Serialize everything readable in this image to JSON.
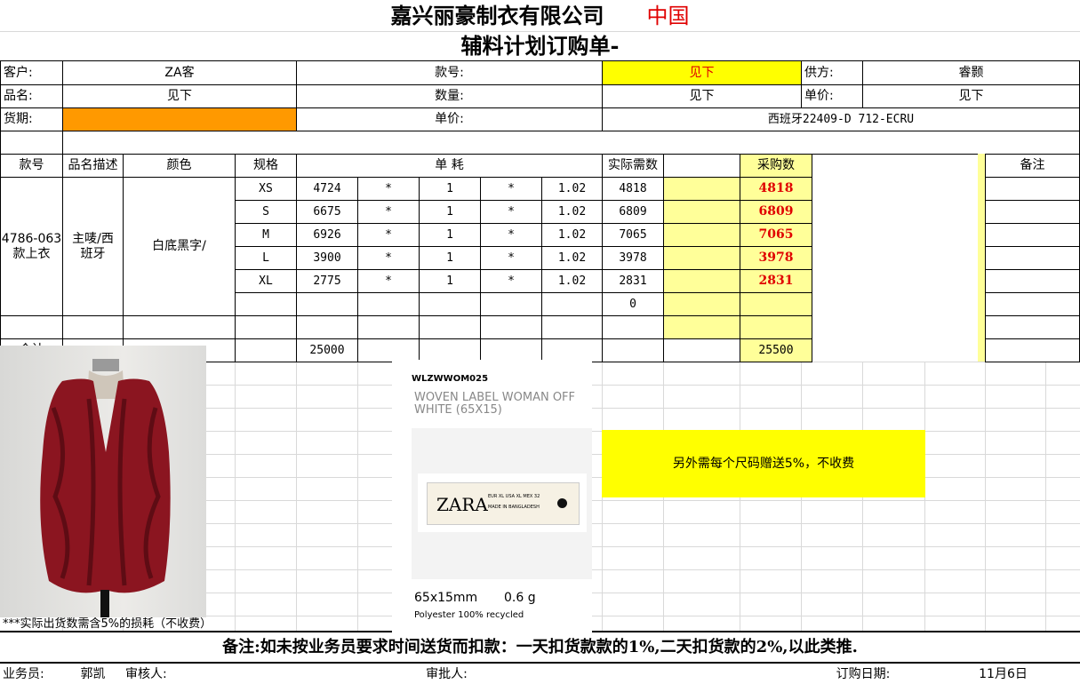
{
  "title": {
    "company": "嘉兴丽豪制衣有限公司",
    "country": "中国",
    "doc": "辅料计划订购单-"
  },
  "info": {
    "customer_label": "客户:",
    "customer": "ZA客",
    "style_label": "款号:",
    "style": "见下",
    "supplier_label": "供方:",
    "supplier": "睿颢",
    "name_label": "品名:",
    "name": "见下",
    "qty_label": "数量:",
    "qty": "见下",
    "price_label": "单价:",
    "price": "见下",
    "delivery_label": "货期:",
    "delivery": "",
    "price2_label": "单价:",
    "price2": "西班牙22409-D 712-ECRU"
  },
  "headers": {
    "style": "款号",
    "desc": "品名描述",
    "color": "颜色",
    "size": "规格",
    "usage": "单 耗",
    "actual": "实际需数",
    "purchase": "采购数",
    "remark": "备注"
  },
  "item": {
    "style": "4786-063\n款上衣",
    "desc": "主唛/西\n班牙",
    "color": "白底黑字/"
  },
  "rows": [
    {
      "size": "XS",
      "qty": "4724",
      "op1": "*",
      "mult": "1",
      "op2": "*",
      "factor": "1.02",
      "actual": "4818",
      "purchase": "4818"
    },
    {
      "size": "S",
      "qty": "6675",
      "op1": "*",
      "mult": "1",
      "op2": "*",
      "factor": "1.02",
      "actual": "6809",
      "purchase": "6809"
    },
    {
      "size": "M",
      "qty": "6926",
      "op1": "*",
      "mult": "1",
      "op2": "*",
      "factor": "1.02",
      "actual": "7065",
      "purchase": "7065"
    },
    {
      "size": "L",
      "qty": "3900",
      "op1": "*",
      "mult": "1",
      "op2": "*",
      "factor": "1.02",
      "actual": "3978",
      "purchase": "3978"
    },
    {
      "size": "XL",
      "qty": "2775",
      "op1": "*",
      "mult": "1",
      "op2": "*",
      "factor": "1.02",
      "actual": "2831",
      "purchase": "2831"
    },
    {
      "size": "",
      "qty": "",
      "op1": "",
      "mult": "",
      "op2": "",
      "factor": "",
      "actual": "0",
      "purchase": ""
    }
  ],
  "total": {
    "label": "合计",
    "qty": "25000",
    "purchase": "25500"
  },
  "extra_note": "另外需每个尺码赠送5%，不收费",
  "loss_note": "***实际出货数需含5%的损耗（不收费）",
  "label_image": {
    "code": "WLZWWOM025",
    "name": "WOVEN LABEL WOMAN OFF WHITE (65X15)",
    "brand": "ZARA",
    "sizes": "EUR XL   USA XL   MEX 32",
    "origin": "MADE IN BANGLADESH",
    "dims": "65x15mm",
    "weight": "0.6 g",
    "material": "Polyester 100% recycled"
  },
  "remark": "备注:如未按业务员要求时间送货而扣款：一天扣货款款的1%,二天扣货款的2%,以此类推.",
  "footer": {
    "sales_label": "业务员:",
    "sales": "郭凯",
    "review_label": "审核人:",
    "approve_label": "审批人:",
    "date_label": "订购日期:",
    "date": "11月6日"
  },
  "colors": {
    "yellow": "#ffff00",
    "light_yellow": "#ffff99",
    "orange": "#ff9900",
    "red": "#e00000",
    "garment": "#8b1520"
  }
}
